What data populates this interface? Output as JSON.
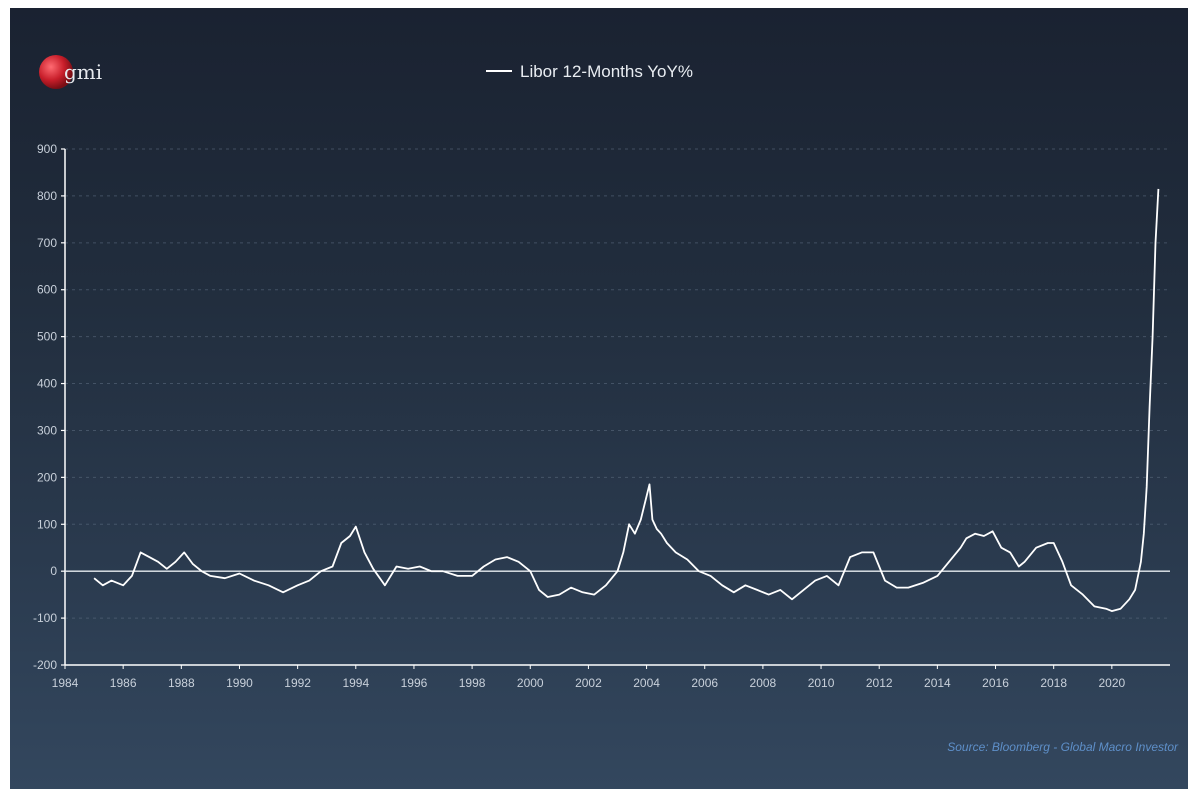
{
  "logo": {
    "text": "gmi"
  },
  "source": "Source: Bloomberg - Global Macro Investor",
  "colors": {
    "line": "#ffffff",
    "grid": "#5a6a7e",
    "logo_red": "#c81e2a",
    "source": "#5e8fc9"
  },
  "chart_data": {
    "type": "line",
    "title": "",
    "xlabel": "",
    "ylabel": "",
    "xlim": [
      1984,
      2022
    ],
    "ylim": [
      -200,
      900
    ],
    "x_ticks": [
      "1984",
      "1986",
      "1988",
      "1990",
      "1992",
      "1994",
      "1996",
      "1998",
      "2000",
      "2002",
      "2004",
      "2006",
      "2008",
      "2010",
      "2012",
      "2014",
      "2016",
      "2018",
      "2020"
    ],
    "y_ticks": [
      "900",
      "800",
      "700",
      "600",
      "500",
      "400",
      "300",
      "200",
      "100",
      "0",
      "-100",
      "-200"
    ],
    "grid": "horizontal dashed",
    "legend_position": "top-center",
    "series": [
      {
        "name": "Libor 12-Months YoY%",
        "x": [
          1985.0,
          1985.3,
          1985.6,
          1986.0,
          1986.3,
          1986.6,
          1986.9,
          1987.2,
          1987.5,
          1987.8,
          1988.1,
          1988.4,
          1988.7,
          1989.0,
          1989.5,
          1990.0,
          1990.5,
          1991.0,
          1991.5,
          1992.0,
          1992.4,
          1992.8,
          1993.2,
          1993.5,
          1993.8,
          1994.0,
          1994.3,
          1994.6,
          1995.0,
          1995.4,
          1995.8,
          1996.2,
          1996.6,
          1997.0,
          1997.5,
          1998.0,
          1998.4,
          1998.8,
          1999.2,
          1999.6,
          2000.0,
          2000.3,
          2000.6,
          2001.0,
          2001.4,
          2001.8,
          2002.2,
          2002.6,
          2003.0,
          2003.2,
          2003.4,
          2003.6,
          2003.8,
          2004.0,
          2004.1,
          2004.2,
          2004.35,
          2004.5,
          2004.7,
          2005.0,
          2005.4,
          2005.8,
          2006.2,
          2006.6,
          2007.0,
          2007.4,
          2007.8,
          2008.2,
          2008.6,
          2009.0,
          2009.4,
          2009.8,
          2010.2,
          2010.6,
          2011.0,
          2011.4,
          2011.8,
          2012.2,
          2012.6,
          2013.0,
          2013.5,
          2014.0,
          2014.4,
          2014.8,
          2015.0,
          2015.3,
          2015.6,
          2015.9,
          2016.2,
          2016.5,
          2016.8,
          2017.0,
          2017.4,
          2017.8,
          2018.0,
          2018.3,
          2018.6,
          2019.0,
          2019.4,
          2019.8,
          2020.0,
          2020.3,
          2020.6,
          2020.8,
          2021.0,
          2021.1,
          2021.2,
          2021.3,
          2021.4,
          2021.5,
          2021.6
        ],
        "y": [
          -15,
          -30,
          -20,
          -30,
          -10,
          40,
          30,
          20,
          5,
          20,
          40,
          15,
          0,
          -10,
          -15,
          -5,
          -20,
          -30,
          -45,
          -30,
          -20,
          0,
          10,
          60,
          75,
          95,
          40,
          5,
          -30,
          10,
          5,
          10,
          0,
          0,
          -10,
          -10,
          10,
          25,
          30,
          20,
          0,
          -40,
          -55,
          -50,
          -35,
          -45,
          -50,
          -30,
          0,
          40,
          100,
          80,
          110,
          160,
          185,
          110,
          90,
          80,
          60,
          40,
          25,
          0,
          -10,
          -30,
          -45,
          -30,
          -40,
          -50,
          -40,
          -60,
          -40,
          -20,
          -10,
          -30,
          30,
          40,
          40,
          -20,
          -35,
          -35,
          -25,
          -10,
          20,
          50,
          70,
          80,
          75,
          85,
          50,
          40,
          10,
          20,
          50,
          60,
          60,
          20,
          -30,
          -50,
          -75,
          -80,
          -85,
          -80,
          -60,
          -40,
          20,
          80,
          180,
          350,
          500,
          700,
          815
        ]
      }
    ]
  }
}
